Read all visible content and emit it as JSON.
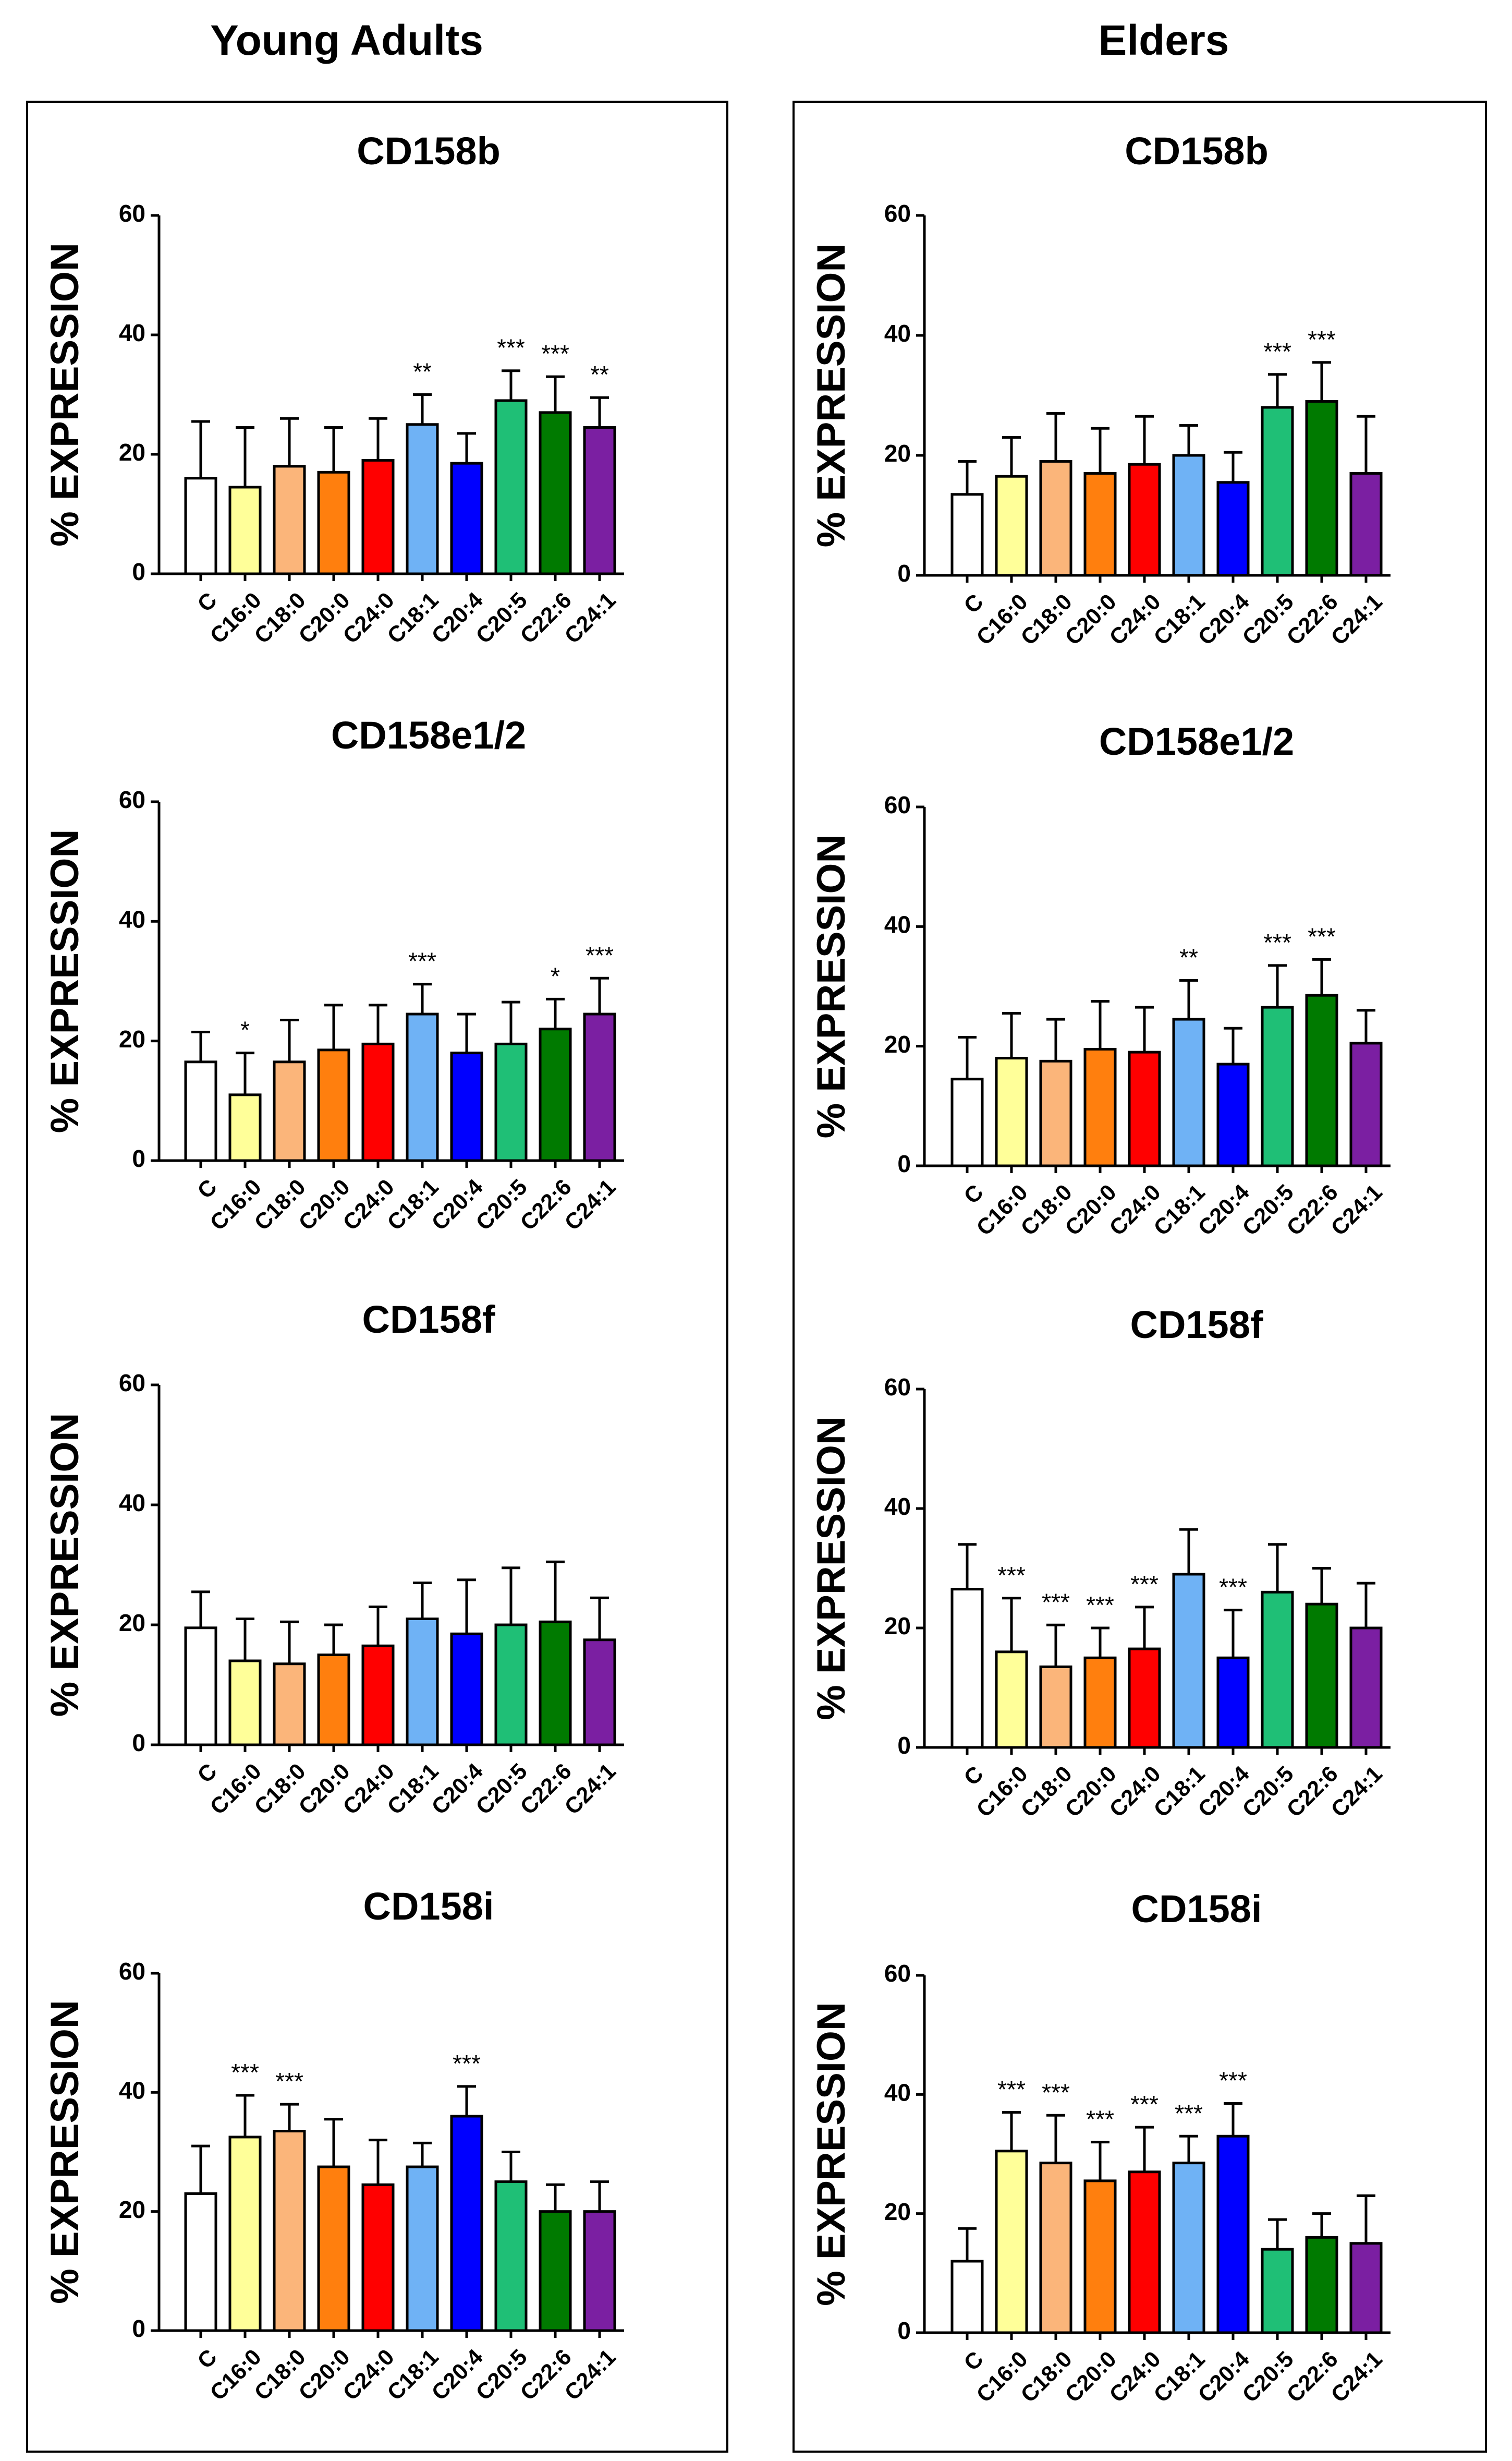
{
  "columns": [
    {
      "heading": "Young Adults"
    },
    {
      "heading": "Elders"
    }
  ],
  "colors": {
    "C": "#ffffff",
    "C16:0": "#ffff99",
    "C18:0": "#fbb57a",
    "C20:0": "#ff7f0e",
    "C24:0": "#ff0000",
    "C18:1": "#6fb2f5",
    "C20:4": "#0000ff",
    "C20:5": "#1fbf76",
    "C22:6": "#007a00",
    "C24:1": "#7b1fa2"
  },
  "chart_data": [
    {
      "id": "young-cd158b",
      "type": "bar",
      "title": "CD158b",
      "ylabel": "% EXPRESSION",
      "ylim": [
        0,
        60
      ],
      "yticks": [
        0,
        20,
        40,
        60
      ],
      "categories": [
        "C",
        "C16:0",
        "C18:0",
        "C20:0",
        "C24:0",
        "C18:1",
        "C20:4",
        "C20:5",
        "C22:6",
        "C24:1"
      ],
      "values": [
        16,
        14.5,
        18,
        17,
        19,
        25,
        18.5,
        29,
        27,
        24.5
      ],
      "errors": [
        9.5,
        10,
        8,
        7.5,
        7,
        5,
        5,
        5,
        6,
        5
      ],
      "significance": [
        "",
        "",
        "",
        "",
        "",
        "**",
        "",
        "***",
        "***",
        "**"
      ]
    },
    {
      "id": "young-cd158e",
      "type": "bar",
      "title": "CD158e1/2",
      "ylabel": "% EXPRESSION",
      "ylim": [
        0,
        60
      ],
      "yticks": [
        0,
        20,
        40,
        60
      ],
      "categories": [
        "C",
        "C16:0",
        "C18:0",
        "C20:0",
        "C24:0",
        "C18:1",
        "C20:4",
        "C20:5",
        "C22:6",
        "C24:1"
      ],
      "values": [
        16.5,
        11,
        16.5,
        18.5,
        19.5,
        24.5,
        18,
        19.5,
        22,
        24.5
      ],
      "errors": [
        5,
        7,
        7,
        7.5,
        6.5,
        5,
        6.5,
        7,
        5,
        6
      ],
      "significance": [
        "",
        "*",
        "",
        "",
        "",
        "***",
        "",
        "",
        "*",
        "***"
      ]
    },
    {
      "id": "young-cd158f",
      "type": "bar",
      "title": "CD158f",
      "ylabel": "% EXPRESSION",
      "ylim": [
        0,
        60
      ],
      "yticks": [
        0,
        20,
        40,
        60
      ],
      "categories": [
        "C",
        "C16:0",
        "C18:0",
        "C20:0",
        "C24:0",
        "C18:1",
        "C20:4",
        "C20:5",
        "C22:6",
        "C24:1"
      ],
      "values": [
        19.5,
        14,
        13.5,
        15,
        16.5,
        21,
        18.5,
        20,
        20.5,
        17.5
      ],
      "errors": [
        6,
        7,
        7,
        5,
        6.5,
        6,
        9,
        9.5,
        10,
        7
      ],
      "significance": [
        "",
        "",
        "",
        "",
        "",
        "",
        "",
        "",
        "",
        ""
      ]
    },
    {
      "id": "young-cd158i",
      "type": "bar",
      "title": "CD158i",
      "ylabel": "% EXPRESSION",
      "ylim": [
        0,
        60
      ],
      "yticks": [
        0,
        20,
        40,
        60
      ],
      "categories": [
        "C",
        "C16:0",
        "C18:0",
        "C20:0",
        "C24:0",
        "C18:1",
        "C20:4",
        "C20:5",
        "C22:6",
        "C24:1"
      ],
      "values": [
        23,
        32.5,
        33.5,
        27.5,
        24.5,
        27.5,
        36,
        25,
        20,
        20
      ],
      "errors": [
        8,
        7,
        4.5,
        8,
        7.5,
        4,
        5,
        5,
        4.5,
        5
      ],
      "significance": [
        "",
        "***",
        "***",
        "",
        "",
        "",
        "***",
        "",
        "",
        ""
      ]
    },
    {
      "id": "elder-cd158b",
      "type": "bar",
      "title": "CD158b",
      "ylabel": "% EXPRESSION",
      "ylim": [
        0,
        60
      ],
      "yticks": [
        0,
        20,
        40,
        60
      ],
      "categories": [
        "C",
        "C16:0",
        "C18:0",
        "C20:0",
        "C24:0",
        "C18:1",
        "C20:4",
        "C20:5",
        "C22:6",
        "C24:1"
      ],
      "values": [
        13.5,
        16.5,
        19,
        17,
        18.5,
        20,
        15.5,
        28,
        29,
        17
      ],
      "errors": [
        5.5,
        6.5,
        8,
        7.5,
        8,
        5,
        5,
        5.5,
        6.5,
        9.5
      ],
      "significance": [
        "",
        "",
        "",
        "",
        "",
        "",
        "",
        "***",
        "***",
        ""
      ]
    },
    {
      "id": "elder-cd158e",
      "type": "bar",
      "title": "CD158e1/2",
      "ylabel": "% EXPRESSION",
      "ylim": [
        0,
        60
      ],
      "yticks": [
        0,
        20,
        40,
        60
      ],
      "categories": [
        "C",
        "C16:0",
        "C18:0",
        "C20:0",
        "C24:0",
        "C18:1",
        "C20:4",
        "C20:5",
        "C22:6",
        "C24:1"
      ],
      "values": [
        14.5,
        18,
        17.5,
        19.5,
        19,
        24.5,
        17,
        26.5,
        28.5,
        20.5
      ],
      "errors": [
        7,
        7.5,
        7,
        8,
        7.5,
        6.5,
        6,
        7,
        6,
        5.5
      ],
      "significance": [
        "",
        "",
        "",
        "",
        "",
        "**",
        "",
        "***",
        "***",
        ""
      ]
    },
    {
      "id": "elder-cd158f",
      "type": "bar",
      "title": "CD158f",
      "ylabel": "% EXPRESSION",
      "ylim": [
        0,
        60
      ],
      "yticks": [
        0,
        20,
        40,
        60
      ],
      "categories": [
        "C",
        "C16:0",
        "C18:0",
        "C20:0",
        "C24:0",
        "C18:1",
        "C20:4",
        "C20:5",
        "C22:6",
        "C24:1"
      ],
      "values": [
        26.5,
        16,
        13.5,
        15,
        16.5,
        29,
        15,
        26,
        24,
        20
      ],
      "errors": [
        7.5,
        9,
        7,
        5,
        7,
        7.5,
        8,
        8,
        6,
        7.5
      ],
      "significance": [
        "",
        "***",
        "***",
        "***",
        "***",
        "",
        "***",
        "",
        "",
        ""
      ]
    },
    {
      "id": "elder-cd158i",
      "type": "bar",
      "title": "CD158i",
      "ylabel": "% EXPRESSION",
      "ylim": [
        0,
        60
      ],
      "yticks": [
        0,
        20,
        40,
        60
      ],
      "categories": [
        "C",
        "C16:0",
        "C18:0",
        "C20:0",
        "C24:0",
        "C18:1",
        "C20:4",
        "C20:5",
        "C22:6",
        "C24:1"
      ],
      "values": [
        12,
        30.5,
        28.5,
        25.5,
        27,
        28.5,
        33,
        14,
        16,
        15
      ],
      "errors": [
        5.5,
        6.5,
        8,
        6.5,
        7.5,
        4.5,
        5.5,
        5,
        4,
        8
      ],
      "significance": [
        "",
        "***",
        "***",
        "***",
        "***",
        "***",
        "***",
        "",
        "",
        ""
      ]
    }
  ]
}
